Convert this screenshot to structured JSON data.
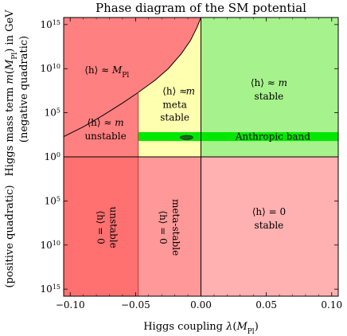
{
  "chart_data": {
    "type": "phase-diagram",
    "title": "Phase diagram of the SM potential",
    "xlabel": "Higgs coupling λ(M",
    "xlabel_sub": "Pl",
    "xlabel_end": ")",
    "ylabel_line1": "Higgs mass term m(M",
    "ylabel_line1_sub": "Pl",
    "ylabel_line1_end": ") in GeV",
    "ylabel_upper": "(negative quadratic)",
    "ylabel_lower": "(positive quadratic)",
    "xlim": [
      -0.105,
      0.105
    ],
    "ylim_log10_upper": [
      0,
      15.8
    ],
    "ylim_log10_lower": [
      0,
      15.8
    ],
    "x_ticks": [
      {
        "value": -0.1,
        "label": "−0.10"
      },
      {
        "value": -0.05,
        "label": "−0.05"
      },
      {
        "value": 0.0,
        "label": "0.00"
      },
      {
        "value": 0.05,
        "label": "0.05"
      },
      {
        "value": 0.1,
        "label": "0.10"
      }
    ],
    "y_ticks_upper": [
      {
        "exp": 15,
        "base": "10",
        "sup": "15"
      },
      {
        "exp": 10,
        "base": "10",
        "sup": "10"
      },
      {
        "exp": 5,
        "base": "10",
        "sup": "5"
      },
      {
        "exp": 0,
        "base": "10",
        "sup": "0"
      }
    ],
    "y_ticks_lower": [
      {
        "exp": 5,
        "base": "10",
        "sup": "5"
      },
      {
        "exp": 10,
        "base": "10",
        "sup": "10"
      },
      {
        "exp": 15,
        "base": "10",
        "sup": "15"
      }
    ],
    "boundaries": {
      "vertical_x": [
        -0.048,
        0.0
      ],
      "critical_curve_note": "boundary between ⟨h⟩≈M_Pl and meta-stable regions"
    },
    "critical_curve": {
      "x": [
        -0.105,
        -0.09,
        -0.075,
        -0.06,
        -0.048,
        -0.035,
        -0.025,
        -0.015,
        -0.008,
        -0.003,
        0.0
      ],
      "log10_m": [
        2.3,
        3.4,
        4.7,
        6.1,
        7.3,
        8.7,
        10.0,
        11.7,
        13.2,
        14.7,
        15.8
      ]
    },
    "anthropic_band": {
      "label": "Anthropic band",
      "x_range": [
        -0.048,
        0.105
      ],
      "log10_m_range": [
        1.8,
        2.8
      ]
    },
    "measured_ellipse": {
      "x": -0.011,
      "log10_m": 2.2
    },
    "regions": [
      {
        "id": "planck-unstable",
        "label_main": "⟨h⟩ ≈ M",
        "label_sub": "Pl",
        "x": -0.072,
        "log10_m": 9.5,
        "side": "upper"
      },
      {
        "id": "unstable-upper",
        "label_main": "⟨h⟩ ≈ m",
        "label_line2": "unstable",
        "x": -0.073,
        "log10_m": 2.8,
        "side": "upper"
      },
      {
        "id": "metastable-upper",
        "label_main": "⟨h⟩ ≈",
        "label_line2": "m",
        "label_line3": "meta",
        "label_line4": "stable",
        "x": -0.02,
        "log10_m": 6.0,
        "side": "upper"
      },
      {
        "id": "stable-upper",
        "label_main": "⟨h⟩ ≈ m",
        "label_line2": "stable",
        "x": 0.052,
        "log10_m": 7.3,
        "side": "upper"
      },
      {
        "id": "unstable-lower",
        "label_main": "⟨h⟩ = 0",
        "label_line2": "unstable",
        "x": -0.075,
        "log10_m": 8.0,
        "side": "lower"
      },
      {
        "id": "metastable-lower",
        "label_main": "⟨h⟩ = 0",
        "label_line2": "meta-stable",
        "x": -0.027,
        "log10_m": 8.0,
        "side": "lower"
      },
      {
        "id": "stable-lower",
        "label_main": "⟨h⟩ = 0",
        "label_line2": "stable",
        "x": 0.052,
        "log10_m": 7.3,
        "side": "lower"
      }
    ],
    "colors": {
      "planck": "#ff8080",
      "unstable_upper": "#ff8080",
      "metastable_upper": "#ffffb0",
      "stable_upper": "#a6f28c",
      "unstable_lower": "#ff7070",
      "metastable_lower": "#ff9898",
      "stable_lower": "#ffb0b0",
      "anthropic": "#00e800"
    }
  }
}
